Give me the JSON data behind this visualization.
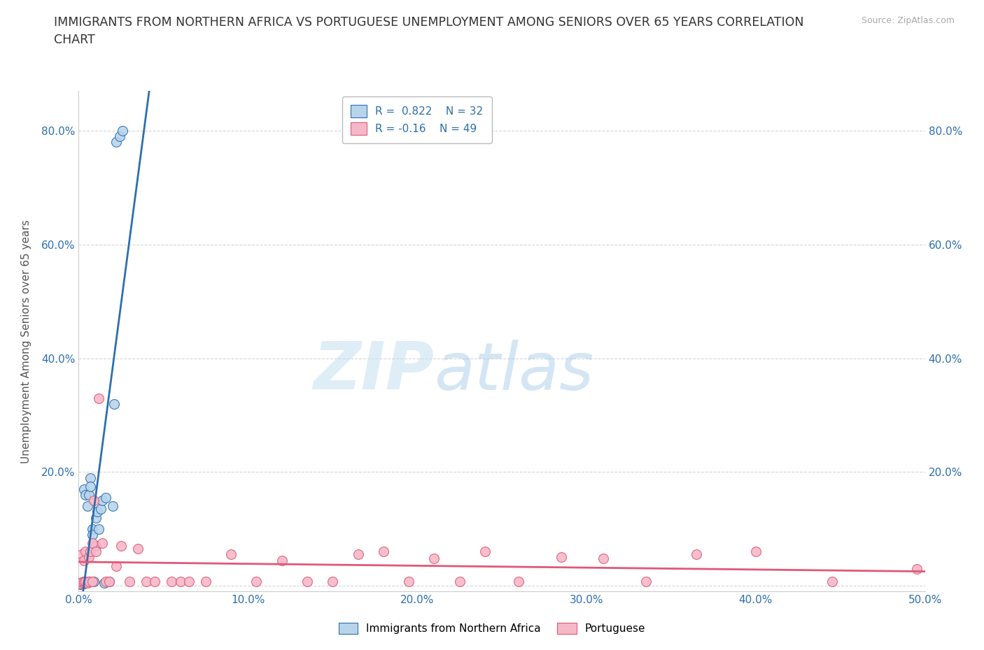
{
  "title": "IMMIGRANTS FROM NORTHERN AFRICA VS PORTUGUESE UNEMPLOYMENT AMONG SENIORS OVER 65 YEARS CORRELATION\nCHART",
  "source": "Source: ZipAtlas.com",
  "ylabel": "Unemployment Among Seniors over 65 years",
  "xlim": [
    0,
    0.5
  ],
  "ylim": [
    -0.01,
    0.87
  ],
  "xticks": [
    0.0,
    0.1,
    0.2,
    0.3,
    0.4,
    0.5
  ],
  "yticks": [
    0.0,
    0.2,
    0.4,
    0.6,
    0.8
  ],
  "xticklabels": [
    "0.0%",
    "10.0%",
    "20.0%",
    "30.0%",
    "40.0%",
    "50.0%"
  ],
  "yticklabels": [
    "",
    "20.0%",
    "40.0%",
    "60.0%",
    "80.0%"
  ],
  "blue_R": 0.822,
  "blue_N": 32,
  "pink_R": -0.16,
  "pink_N": 49,
  "blue_label": "Immigrants from Northern Africa",
  "pink_label": "Portuguese",
  "blue_color": "#b8d4ea",
  "pink_color": "#f5b8c8",
  "blue_line_color": "#2e6fad",
  "pink_line_color": "#e05878",
  "watermark_zip": "ZIP",
  "watermark_atlas": "atlas",
  "blue_scatter_x": [
    0.001,
    0.001,
    0.002,
    0.002,
    0.003,
    0.003,
    0.003,
    0.004,
    0.004,
    0.005,
    0.005,
    0.006,
    0.006,
    0.007,
    0.007,
    0.008,
    0.008,
    0.009,
    0.01,
    0.01,
    0.011,
    0.012,
    0.013,
    0.014,
    0.015,
    0.016,
    0.018,
    0.02,
    0.021,
    0.022,
    0.024,
    0.026
  ],
  "blue_scatter_y": [
    0.003,
    0.005,
    0.004,
    0.006,
    0.004,
    0.007,
    0.17,
    0.005,
    0.16,
    0.006,
    0.14,
    0.008,
    0.16,
    0.19,
    0.175,
    0.1,
    0.09,
    0.008,
    0.12,
    0.07,
    0.13,
    0.1,
    0.135,
    0.15,
    0.005,
    0.155,
    0.008,
    0.14,
    0.32,
    0.78,
    0.79,
    0.8
  ],
  "pink_scatter_x": [
    0.001,
    0.002,
    0.002,
    0.003,
    0.003,
    0.003,
    0.004,
    0.004,
    0.005,
    0.006,
    0.006,
    0.007,
    0.008,
    0.008,
    0.009,
    0.01,
    0.012,
    0.014,
    0.016,
    0.018,
    0.022,
    0.025,
    0.03,
    0.035,
    0.04,
    0.045,
    0.055,
    0.06,
    0.065,
    0.075,
    0.09,
    0.105,
    0.12,
    0.135,
    0.15,
    0.165,
    0.18,
    0.195,
    0.21,
    0.225,
    0.24,
    0.26,
    0.285,
    0.31,
    0.335,
    0.365,
    0.4,
    0.445,
    0.495
  ],
  "pink_scatter_y": [
    0.004,
    0.006,
    0.055,
    0.005,
    0.008,
    0.045,
    0.008,
    0.06,
    0.005,
    0.007,
    0.05,
    0.06,
    0.008,
    0.075,
    0.15,
    0.06,
    0.33,
    0.075,
    0.008,
    0.008,
    0.035,
    0.07,
    0.008,
    0.065,
    0.008,
    0.008,
    0.008,
    0.008,
    0.008,
    0.008,
    0.055,
    0.008,
    0.045,
    0.008,
    0.008,
    0.055,
    0.06,
    0.008,
    0.048,
    0.008,
    0.06,
    0.008,
    0.05,
    0.048,
    0.008,
    0.055,
    0.06,
    0.008,
    0.03
  ]
}
